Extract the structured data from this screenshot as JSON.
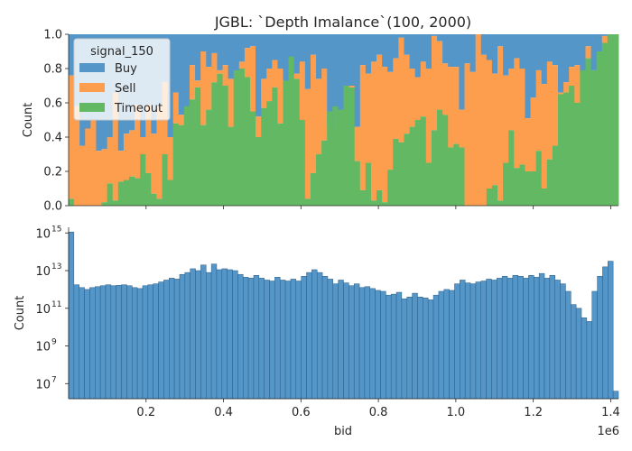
{
  "chart_data": [
    {
      "type": "area",
      "subtype": "stacked-normalized-histogram",
      "title": "JGBL: `Depth Imalance`(100, 2000)",
      "xlabel": "",
      "ylabel": "Count",
      "xlim": [
        0,
        1420000
      ],
      "ylim": [
        0,
        1
      ],
      "yticks": [
        "0.0",
        "0.2",
        "0.4",
        "0.6",
        "0.8",
        "1.0"
      ],
      "legend": {
        "title": "signal_150",
        "placement": "top-left",
        "entries": [
          "Buy",
          "Sell",
          "Timeout"
        ]
      },
      "colors": {
        "Buy": "#5496c8",
        "Sell": "#fd9e4e",
        "Timeout": "#63b963"
      },
      "bins": 100,
      "series_note": "values per bin: cumulative top of Timeout and Sell layers (fractions)",
      "timeout_top": [
        0.04,
        0,
        0,
        0,
        0,
        0,
        0.02,
        0.13,
        0.03,
        0.14,
        0.15,
        0.17,
        0.16,
        0.3,
        0.19,
        0.07,
        0.04,
        0.3,
        0.15,
        0.48,
        0.47,
        0.58,
        0.62,
        0.69,
        0.47,
        0.56,
        0.72,
        0.77,
        0.7,
        0.46,
        0.79,
        0.8,
        0.75,
        0.55,
        0.4,
        0.57,
        0.61,
        0.69,
        0.48,
        0.73,
        0.87,
        0.74,
        0.5,
        0.04,
        0.19,
        0.3,
        0.38,
        0.55,
        0.58,
        0.56,
        0.7,
        0.69,
        0.26,
        0.09,
        0.25,
        0.03,
        0.09,
        0.02,
        0.21,
        0.39,
        0.37,
        0.42,
        0.46,
        0.5,
        0.52,
        0.25,
        0.44,
        0.56,
        0.53,
        0.34,
        0.36,
        0.34,
        0,
        0,
        0,
        0,
        0.1,
        0.12,
        0.03,
        0.25,
        0.44,
        0.22,
        0.24,
        0.2,
        0.2,
        0.32,
        0.1,
        0.27,
        0.35,
        0.65,
        0.66,
        0.7,
        0.6,
        0.79,
        0.86,
        0.79,
        0.9,
        0.95,
        1.0,
        1.0
      ],
      "sell_top": [
        0.76,
        0.58,
        0.35,
        0.45,
        0.5,
        0.32,
        0.33,
        0.4,
        0.66,
        0.32,
        0.42,
        0.44,
        0.59,
        0.4,
        0.59,
        0.42,
        0.58,
        0.72,
        0.4,
        0.66,
        0.53,
        0.39,
        0.82,
        0.73,
        0.9,
        0.81,
        0.89,
        0.79,
        0.82,
        0.74,
        0.73,
        0.84,
        0.92,
        0.93,
        0.52,
        0.74,
        0.8,
        0.85,
        0.8,
        0.59,
        0.57,
        0.77,
        0.84,
        0.68,
        0.88,
        0.74,
        0.8,
        0.46,
        0.45,
        0.48,
        0.51,
        0.7,
        0.46,
        0.82,
        0.77,
        0.84,
        0.88,
        0.81,
        0.78,
        0.86,
        0.98,
        0.88,
        0.8,
        0.75,
        0.84,
        0.8,
        0.99,
        0.96,
        0.83,
        0.81,
        0.81,
        0.56,
        0.83,
        0.78,
        1.0,
        0.88,
        0.85,
        0.77,
        0.93,
        0.76,
        0.8,
        0.86,
        0.8,
        0.51,
        0.63,
        0.79,
        0.71,
        0.84,
        0.82,
        0.66,
        0.72,
        0.81,
        0.82,
        0.78,
        0.93,
        0.79,
        0.84,
        0.99,
        0.97,
        0.98
      ]
    },
    {
      "type": "bar",
      "subtype": "histogram-log",
      "xlabel": "bid",
      "ylabel": "Count",
      "xlim": [
        0,
        1420000
      ],
      "xticks": [
        "0.2",
        "0.4",
        "0.6",
        "0.8",
        "1.0",
        "1.2",
        "1.4"
      ],
      "xtick_values": [
        200000,
        400000,
        600000,
        800000,
        1000000,
        1200000,
        1400000
      ],
      "x_offset_label": "1e6",
      "yscale": "log",
      "ylim_exp": [
        6.2,
        15.3
      ],
      "ytick_exponents": [
        "15",
        "13",
        "11",
        "9",
        "7"
      ],
      "ytick_base": "10",
      "color": "#5496c8",
      "bin_log10_counts": [
        15.05,
        12.25,
        12.1,
        12.0,
        12.1,
        12.15,
        12.2,
        12.25,
        12.2,
        12.22,
        12.25,
        12.2,
        12.1,
        12.05,
        12.2,
        12.25,
        12.3,
        12.4,
        12.5,
        12.6,
        12.55,
        12.8,
        12.9,
        13.1,
        13.0,
        13.3,
        12.9,
        13.35,
        13.05,
        13.1,
        13.05,
        13.0,
        12.8,
        12.65,
        12.6,
        12.75,
        12.6,
        12.5,
        12.45,
        12.65,
        12.5,
        12.45,
        12.55,
        12.45,
        12.7,
        12.9,
        13.05,
        12.9,
        12.7,
        12.55,
        12.3,
        12.5,
        12.35,
        12.2,
        12.3,
        12.1,
        12.15,
        12.05,
        11.95,
        11.9,
        11.7,
        11.75,
        11.85,
        11.5,
        11.6,
        11.8,
        11.6,
        11.55,
        11.45,
        11.7,
        11.9,
        12.0,
        11.95,
        12.3,
        12.5,
        12.35,
        12.3,
        12.4,
        12.45,
        12.55,
        12.5,
        12.6,
        12.7,
        12.6,
        12.75,
        12.7,
        12.6,
        12.75,
        12.65,
        12.85,
        12.6,
        12.75,
        12.5,
        12.3,
        11.9,
        11.2,
        11.0,
        10.5,
        10.3,
        11.9,
        12.7,
        13.2,
        13.5,
        6.6
      ]
    }
  ]
}
